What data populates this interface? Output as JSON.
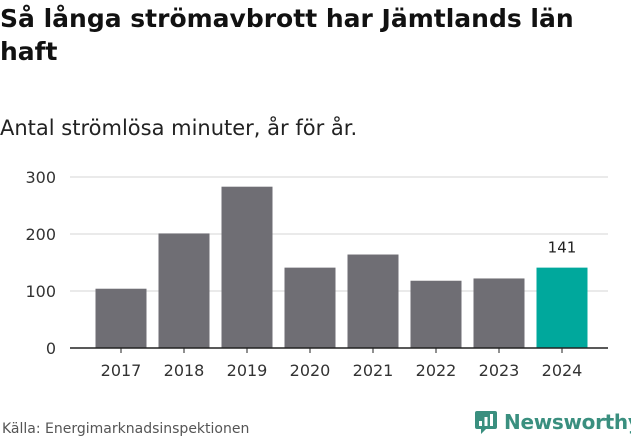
{
  "title": "Så långa strömavbrott har Jämtlands län haft",
  "subtitle": "Antal strömlösa minuter, år för år.",
  "source": "Källa: Energimarknadsinspektionen",
  "logo": {
    "text": "Newsworthy",
    "icon": "newsworthy-chart-icon"
  },
  "colors": {
    "bar": "#6f6e74",
    "highlight": "#00a89c",
    "grid": "#d6d6d6",
    "axis": "#222222",
    "brand": "#3a8f7f"
  },
  "chart_data": {
    "type": "bar",
    "title": "Så långa strömavbrott har Jämtlands län haft",
    "subtitle": "Antal strömlösa minuter, år för år.",
    "xlabel": "",
    "ylabel": "",
    "categories": [
      "2017",
      "2018",
      "2019",
      "2020",
      "2021",
      "2022",
      "2023",
      "2024"
    ],
    "values": [
      104,
      201,
      283,
      141,
      164,
      118,
      122,
      141
    ],
    "highlight_index": 7,
    "data_labels": [
      {
        "index": 7,
        "text": "141"
      }
    ],
    "ylim": [
      0,
      300
    ],
    "yticks": [
      0,
      100,
      200,
      300
    ],
    "grid": true,
    "legend": "none"
  }
}
